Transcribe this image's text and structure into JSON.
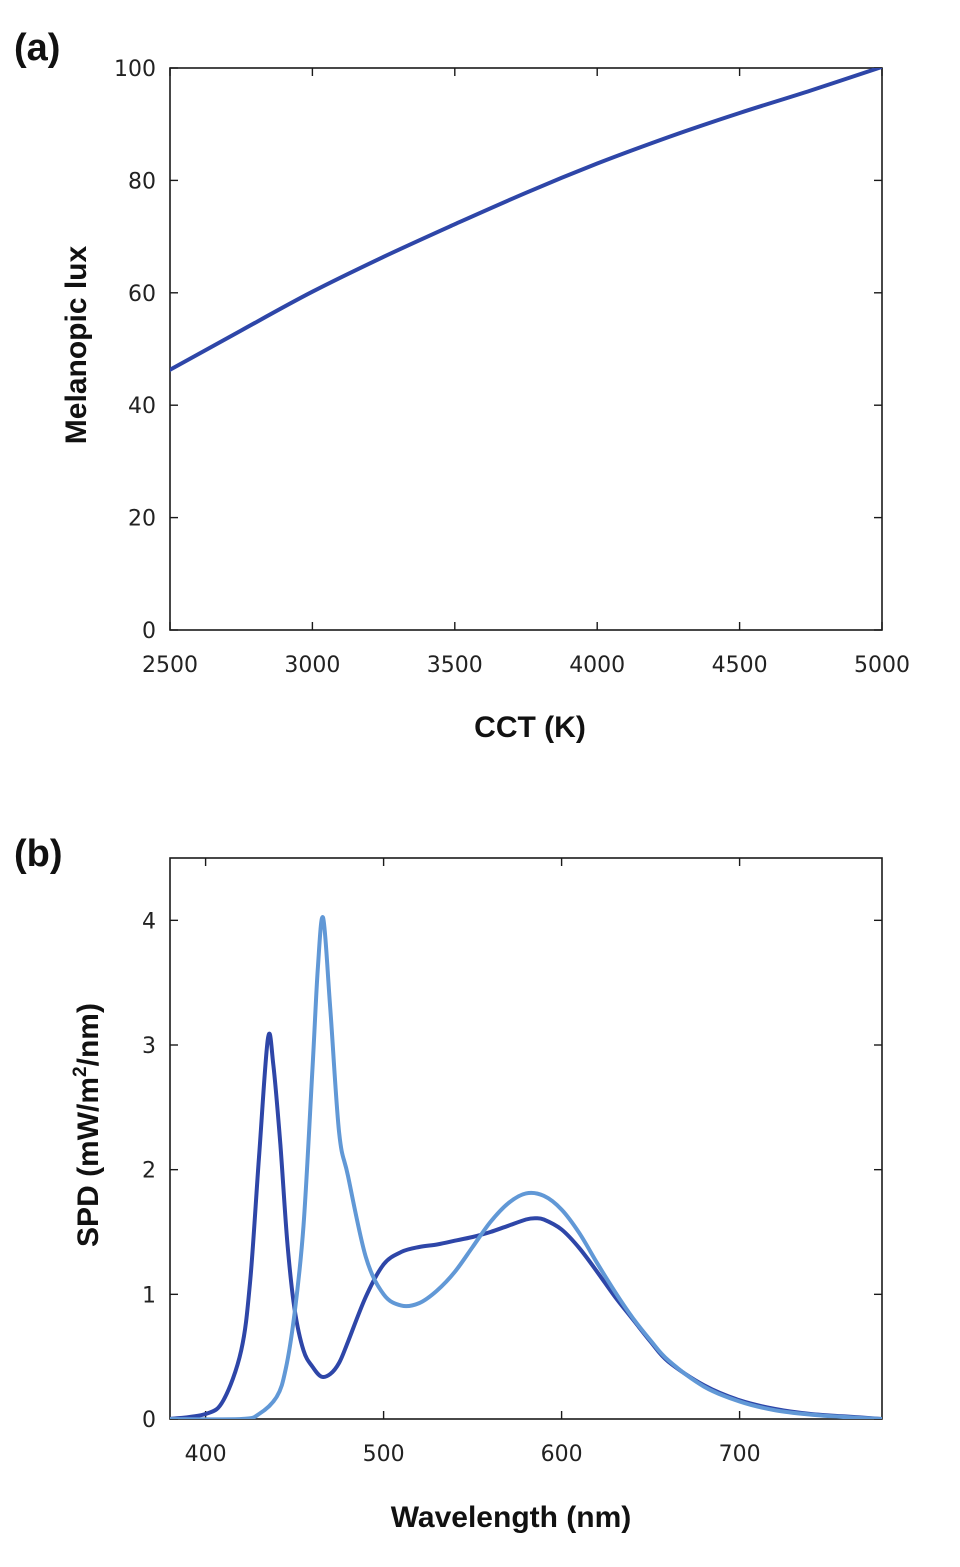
{
  "chart_data": [
    {
      "panel_label": "(a)",
      "type": "line",
      "xlabel": "CCT (K)",
      "ylabel": "Melanopic lux",
      "xlim": [
        2500,
        5000
      ],
      "ylim": [
        0,
        100
      ],
      "xticks": [
        "2500",
        "3000",
        "3500",
        "4000",
        "4500",
        "5000"
      ],
      "yticks": [
        "0",
        "20",
        "40",
        "60",
        "80",
        "100"
      ],
      "grid": false,
      "series": [
        {
          "color": "#2e46a8",
          "x": [
            2500,
            2750,
            3000,
            3250,
            3500,
            3750,
            4000,
            4250,
            4500,
            4750,
            5000
          ],
          "y": [
            46.3,
            53.3,
            60.2,
            66.4,
            72.2,
            77.8,
            83.0,
            87.7,
            92.0,
            96.0,
            100.2
          ]
        }
      ]
    },
    {
      "panel_label": "(b)",
      "type": "line",
      "xlabel": "Wavelength (nm)",
      "ylabel_parts": [
        "SPD (mW/m",
        "2",
        "/nm)"
      ],
      "xlim": [
        380,
        780
      ],
      "ylim": [
        0,
        4.5
      ],
      "xticks": [
        "400",
        "500",
        "600",
        "700"
      ],
      "yticks": [
        "0",
        "1",
        "2",
        "3",
        "4"
      ],
      "grid": false,
      "series": [
        {
          "color": "#2e46a8",
          "x": [
            380,
            400,
            410,
            420,
            425,
            430,
            435,
            438,
            442,
            446,
            450,
            455,
            460,
            465,
            470,
            475,
            480,
            490,
            500,
            510,
            520,
            530,
            540,
            550,
            560,
            570,
            580,
            585,
            590,
            600,
            610,
            620,
            630,
            640,
            650,
            660,
            680,
            700,
            720,
            740,
            760,
            780
          ],
          "y": [
            0.0,
            0.04,
            0.15,
            0.55,
            1.1,
            2.1,
            3.05,
            2.85,
            2.2,
            1.4,
            0.88,
            0.55,
            0.42,
            0.34,
            0.36,
            0.45,
            0.62,
            0.98,
            1.24,
            1.34,
            1.38,
            1.4,
            1.43,
            1.46,
            1.5,
            1.55,
            1.6,
            1.61,
            1.6,
            1.52,
            1.37,
            1.18,
            0.98,
            0.8,
            0.62,
            0.46,
            0.27,
            0.15,
            0.08,
            0.04,
            0.02,
            0.0
          ]
        },
        {
          "color": "#6198d6",
          "x": [
            380,
            420,
            430,
            440,
            445,
            450,
            455,
            460,
            463,
            466,
            470,
            475,
            480,
            490,
            500,
            510,
            520,
            530,
            540,
            550,
            560,
            570,
            580,
            590,
            600,
            610,
            620,
            630,
            640,
            650,
            660,
            680,
            700,
            720,
            740,
            760,
            780
          ],
          "y": [
            0.0,
            0.0,
            0.04,
            0.18,
            0.4,
            0.85,
            1.55,
            2.8,
            3.6,
            4.02,
            3.3,
            2.3,
            1.95,
            1.3,
            1.0,
            0.91,
            0.93,
            1.03,
            1.18,
            1.38,
            1.58,
            1.73,
            1.81,
            1.79,
            1.68,
            1.49,
            1.25,
            1.02,
            0.81,
            0.63,
            0.47,
            0.26,
            0.14,
            0.07,
            0.035,
            0.015,
            0.0
          ]
        }
      ]
    }
  ]
}
